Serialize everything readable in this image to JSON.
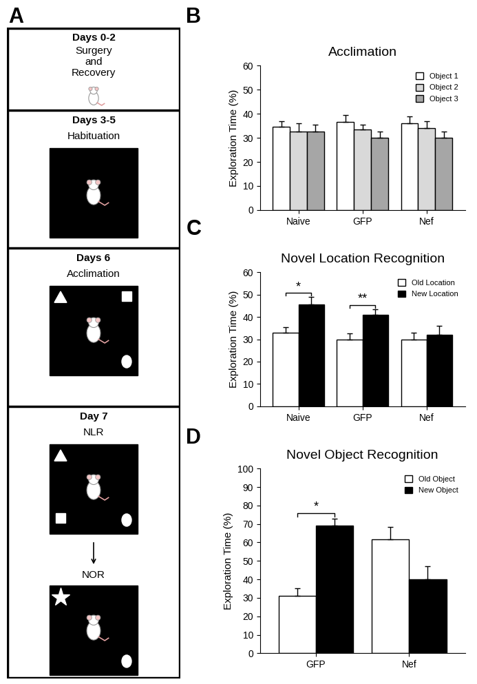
{
  "diagram": {
    "panel": "A",
    "steps": [
      {
        "days": "Days 0-2",
        "labels": [
          "Surgery\nand\nRecovery"
        ]
      },
      {
        "days": "Days 3-5",
        "labels": [
          "Habituation"
        ]
      },
      {
        "days": "Days 6",
        "labels": [
          "Acclimation"
        ]
      },
      {
        "days": "Day 7",
        "labels": [
          "NLR",
          "NOR"
        ]
      }
    ]
  },
  "chart_data": [
    {
      "panel": "B",
      "type": "bar",
      "title": "Acclimation",
      "y_label": "Exploration Time (%)",
      "categories": [
        "Naive",
        "GFP",
        "Nef"
      ],
      "series": [
        {
          "name": "Object 1",
          "color": "#ffffff",
          "values": [
            34.5,
            36.5,
            36
          ],
          "errors": [
            2.5,
            3,
            3
          ]
        },
        {
          "name": "Object 2",
          "color": "#d9d9d9",
          "values": [
            32.5,
            33.5,
            34
          ],
          "errors": [
            3.5,
            2,
            3
          ]
        },
        {
          "name": "Object 3",
          "color": "#a6a6a6",
          "values": [
            32.5,
            30,
            30
          ],
          "errors": [
            3,
            2.5,
            2.5
          ]
        }
      ],
      "ylim": [
        0,
        60
      ],
      "yticks": [
        0,
        10,
        20,
        30,
        40,
        50,
        60
      ],
      "legend": "upper right",
      "annotations": []
    },
    {
      "panel": "C",
      "type": "bar",
      "title": "Novel Location Recognition",
      "y_label": "Exploration Time (%)",
      "categories": [
        "Naive",
        "GFP",
        "Nef"
      ],
      "series": [
        {
          "name": "Old Location",
          "color": "#ffffff",
          "values": [
            33,
            30,
            30
          ],
          "errors": [
            2.5,
            2.5,
            3
          ]
        },
        {
          "name": "New Location",
          "color": "#000000",
          "values": [
            45.5,
            41,
            32
          ],
          "errors": [
            3.5,
            2.5,
            4
          ]
        }
      ],
      "ylim": [
        0,
        60
      ],
      "yticks": [
        0,
        10,
        20,
        30,
        40,
        50,
        60
      ],
      "legend": "upper right",
      "annotations": [
        {
          "text": "*",
          "category": "Naive"
        },
        {
          "text": "**",
          "category": "GFP"
        }
      ]
    },
    {
      "panel": "D",
      "type": "bar",
      "title": "Novel Object Recognition",
      "y_label": "Exploration Time (%)",
      "categories": [
        "GFP",
        "Nef"
      ],
      "series": [
        {
          "name": "Old Object",
          "color": "#ffffff",
          "values": [
            31,
            61.5
          ],
          "errors": [
            4,
            7
          ]
        },
        {
          "name": "New Object",
          "color": "#000000",
          "values": [
            69,
            40
          ],
          "errors": [
            4,
            7
          ]
        }
      ],
      "ylim": [
        0,
        100
      ],
      "yticks": [
        0,
        10,
        20,
        30,
        40,
        50,
        60,
        70,
        80,
        90,
        100
      ],
      "legend": "upper right",
      "annotations": [
        {
          "text": "*",
          "category": "GFP"
        }
      ]
    }
  ]
}
